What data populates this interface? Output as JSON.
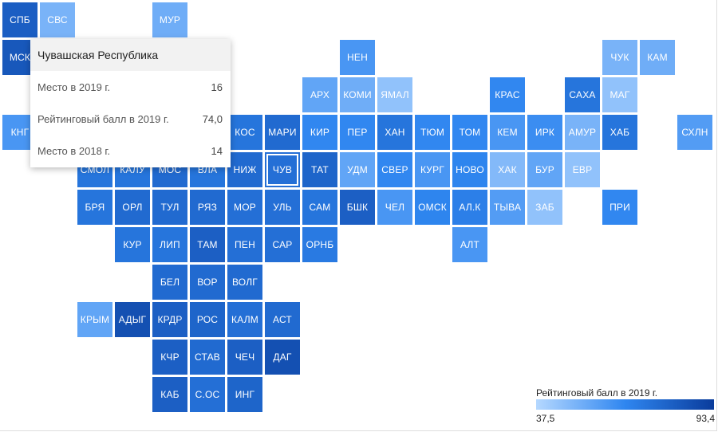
{
  "tiles": [
    {
      "label": "СПБ",
      "value": 80.4
    },
    {
      "label": "СВС",
      "value": 50.0
    },
    {
      "label": "МУР",
      "value": 52.0
    },
    {
      "label": "МСК",
      "value": 83.0
    },
    {
      "label": "НЕН",
      "value": 60.0
    },
    {
      "label": "ЧУК",
      "value": 50.0
    },
    {
      "label": "КАМ",
      "value": 52.0
    },
    {
      "label": "АРХ",
      "value": 55.0
    },
    {
      "label": "КОМИ",
      "value": 52.0
    },
    {
      "label": "ЯМАЛ",
      "value": 45.0
    },
    {
      "label": "КРАС",
      "value": 65.0
    },
    {
      "label": "САХА",
      "value": 72.0
    },
    {
      "label": "МАГ",
      "value": 45.0
    },
    {
      "label": "КНГ",
      "value": 60.0
    },
    {
      "label": "КОС",
      "value": 72.0
    },
    {
      "label": "МАРИ",
      "value": 76.0
    },
    {
      "label": "КИР",
      "value": 65.0
    },
    {
      "label": "ПЕР",
      "value": 65.0
    },
    {
      "label": "ХАН",
      "value": 72.0
    },
    {
      "label": "ТЮМ",
      "value": 65.0
    },
    {
      "label": "ТОМ",
      "value": 65.0
    },
    {
      "label": "КЕМ",
      "value": 60.0
    },
    {
      "label": "ИРК",
      "value": 63.0
    },
    {
      "label": "АМУР",
      "value": 50.0
    },
    {
      "label": "ХАБ",
      "value": 72.0
    },
    {
      "label": "СХЛН",
      "value": 58.0
    },
    {
      "label": "СМОЛ",
      "value": 72.0
    },
    {
      "label": "КАЛУ",
      "value": 72.0
    },
    {
      "label": "МОС",
      "value": 76.0
    },
    {
      "label": "ВЛА",
      "value": 72.0
    },
    {
      "label": "НИЖ",
      "value": 76.0
    },
    {
      "label": "ЧУВ",
      "value": 74.0
    },
    {
      "label": "ТАТ",
      "value": 78.0
    },
    {
      "label": "УДМ",
      "value": 55.0
    },
    {
      "label": "СВЕР",
      "value": 65.0
    },
    {
      "label": "КУРГ",
      "value": 60.0
    },
    {
      "label": "НОВО",
      "value": 66.0
    },
    {
      "label": "ХАК",
      "value": 48.0
    },
    {
      "label": "БУР",
      "value": 55.0
    },
    {
      "label": "ЕВР",
      "value": 45.0
    },
    {
      "label": "БРЯ",
      "value": 72.0
    },
    {
      "label": "ОРЛ",
      "value": 76.0
    },
    {
      "label": "ТУЛ",
      "value": 76.0
    },
    {
      "label": "РЯЗ",
      "value": 76.0
    },
    {
      "label": "МОР",
      "value": 74.0
    },
    {
      "label": "УЛЬ",
      "value": 74.0
    },
    {
      "label": "САМ",
      "value": 72.0
    },
    {
      "label": "БШК",
      "value": 80.0
    },
    {
      "label": "ЧЕЛ",
      "value": 60.0
    },
    {
      "label": "ОМСК",
      "value": 66.0
    },
    {
      "label": "АЛ.К",
      "value": 68.0
    },
    {
      "label": "ТЫВА",
      "value": 58.0
    },
    {
      "label": "ЗАБ",
      "value": 45.0
    },
    {
      "label": "ПРИ",
      "value": 65.0
    },
    {
      "label": "КУР",
      "value": 72.0
    },
    {
      "label": "ЛИП",
      "value": 72.0
    },
    {
      "label": "ТАМ",
      "value": 80.0
    },
    {
      "label": "ПЕН",
      "value": 74.0
    },
    {
      "label": "САР",
      "value": 74.0
    },
    {
      "label": "ОРНБ",
      "value": 70.0
    },
    {
      "label": "АЛТ",
      "value": 60.0
    },
    {
      "label": "БЕЛ",
      "value": 76.0
    },
    {
      "label": "ВОР",
      "value": 76.0
    },
    {
      "label": "ВОЛГ",
      "value": 76.0
    },
    {
      "label": "КРЫМ",
      "value": 55.0
    },
    {
      "label": "АДЫГ",
      "value": 86.0
    },
    {
      "label": "КРДР",
      "value": 80.0
    },
    {
      "label": "РОС",
      "value": 78.0
    },
    {
      "label": "КАЛМ",
      "value": 74.0
    },
    {
      "label": "АСТ",
      "value": 76.0
    },
    {
      "label": "КЧР",
      "value": 80.0
    },
    {
      "label": "СТАВ",
      "value": 76.0
    },
    {
      "label": "ЧЕЧ",
      "value": 80.0
    },
    {
      "label": "ДАГ",
      "value": 86.0
    },
    {
      "label": "КАБ",
      "value": 80.0
    },
    {
      "label": "С.ОС",
      "value": 74.0
    },
    {
      "label": "ИНГ",
      "value": 78.0
    }
  ],
  "tooltip": {
    "title": "Чувашская Республика",
    "rows": [
      {
        "label": "Место в 2019 г.",
        "value": "16"
      },
      {
        "label": "Рейтинговый балл в 2019 г.",
        "value": "74,0"
      },
      {
        "label": "Место в 2018 г.",
        "value": "14"
      }
    ]
  },
  "legend": {
    "title": "Рейтинговый балл в 2019 г.",
    "min_label": "37,5",
    "max_label": "93,4",
    "min": 37.5,
    "max": 93.4,
    "colors": [
      "#b5d8ff",
      "#2f86f0",
      "#0a3c9c"
    ]
  },
  "selected": "ЧУВ"
}
